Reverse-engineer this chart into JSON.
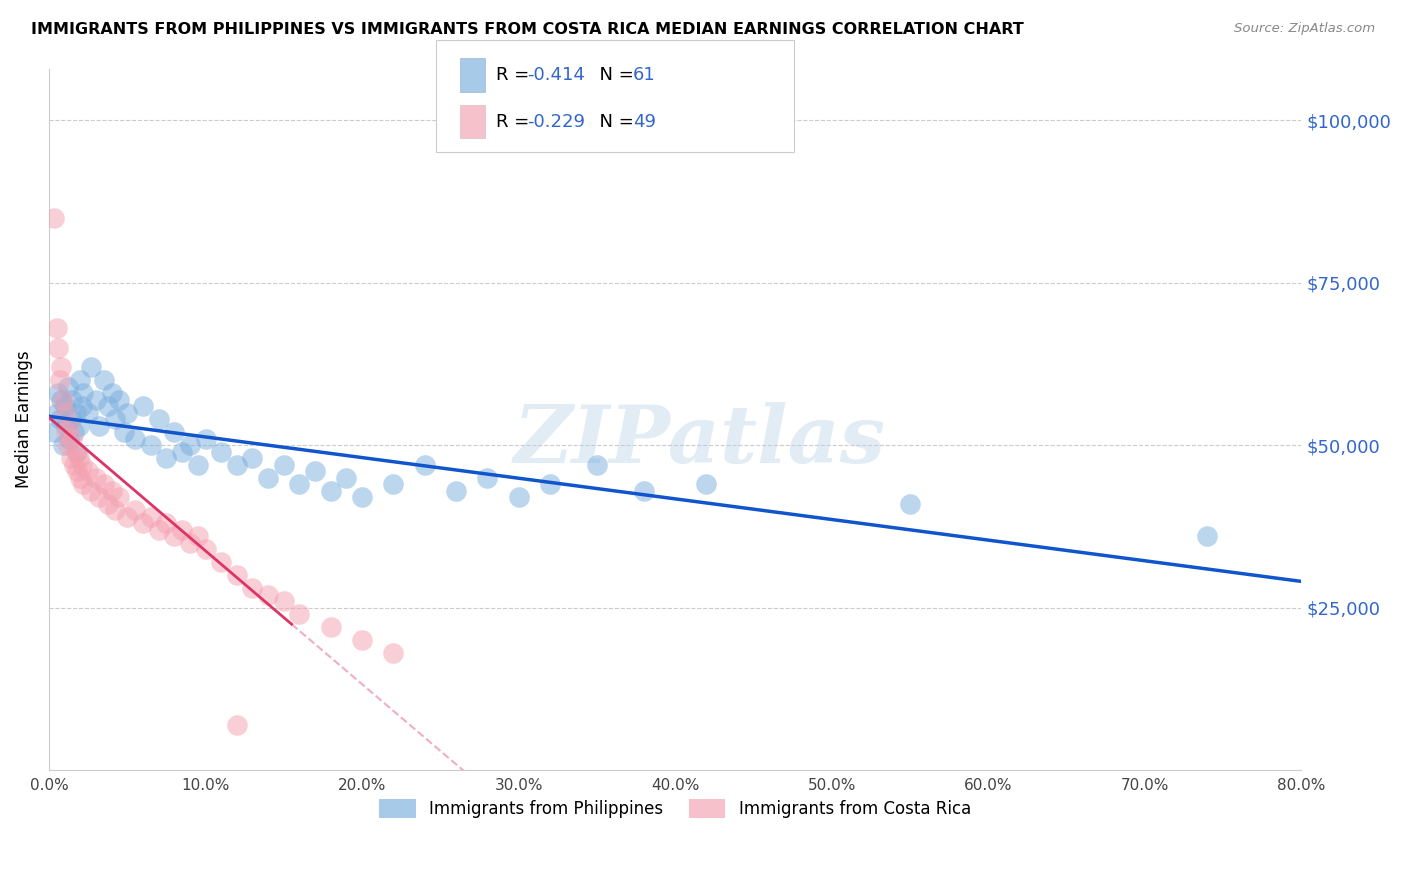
{
  "title": "IMMIGRANTS FROM PHILIPPINES VS IMMIGRANTS FROM COSTA RICA MEDIAN EARNINGS CORRELATION CHART",
  "source": "Source: ZipAtlas.com",
  "ylabel": "Median Earnings",
  "y_ticks": [
    0,
    25000,
    50000,
    75000,
    100000
  ],
  "y_tick_labels": [
    "",
    "$25,000",
    "$50,000",
    "$75,000",
    "$100,000"
  ],
  "xlim": [
    0.0,
    0.8
  ],
  "ylim": [
    0,
    108000
  ],
  "philippines_color": "#7aaede",
  "costa_rica_color": "#f4a0b0",
  "philippines_label": "Immigrants from Philippines",
  "costa_rica_label": "Immigrants from Costa Rica",
  "philippines_R": "-0.414",
  "philippines_N": "61",
  "costa_rica_R": "-0.229",
  "costa_rica_N": "49",
  "line_color_philippines": "#1155cc",
  "line_color_costa_rica": "#dd3366",
  "legend_text_color": "#3366cc",
  "watermark": "ZIPatlas",
  "philippines_x": [
    0.003,
    0.005,
    0.006,
    0.007,
    0.008,
    0.009,
    0.01,
    0.011,
    0.012,
    0.013,
    0.014,
    0.015,
    0.016,
    0.017,
    0.018,
    0.019,
    0.02,
    0.021,
    0.022,
    0.025,
    0.027,
    0.03,
    0.032,
    0.035,
    0.038,
    0.04,
    0.042,
    0.045,
    0.048,
    0.05,
    0.055,
    0.06,
    0.065,
    0.07,
    0.075,
    0.08,
    0.085,
    0.09,
    0.095,
    0.1,
    0.11,
    0.12,
    0.13,
    0.14,
    0.15,
    0.16,
    0.17,
    0.18,
    0.19,
    0.2,
    0.22,
    0.24,
    0.26,
    0.28,
    0.3,
    0.32,
    0.35,
    0.38,
    0.42,
    0.55,
    0.74
  ],
  "philippines_y": [
    52000,
    55000,
    58000,
    54000,
    57000,
    50000,
    56000,
    53000,
    59000,
    51000,
    54000,
    57000,
    52000,
    55000,
    49000,
    53000,
    60000,
    56000,
    58000,
    55000,
    62000,
    57000,
    53000,
    60000,
    56000,
    58000,
    54000,
    57000,
    52000,
    55000,
    51000,
    56000,
    50000,
    54000,
    48000,
    52000,
    49000,
    50000,
    47000,
    51000,
    49000,
    47000,
    48000,
    45000,
    47000,
    44000,
    46000,
    43000,
    45000,
    42000,
    44000,
    47000,
    43000,
    45000,
    42000,
    44000,
    47000,
    43000,
    44000,
    41000,
    36000
  ],
  "costa_rica_x": [
    0.003,
    0.005,
    0.006,
    0.007,
    0.008,
    0.009,
    0.01,
    0.011,
    0.012,
    0.013,
    0.014,
    0.015,
    0.016,
    0.017,
    0.018,
    0.019,
    0.02,
    0.021,
    0.022,
    0.025,
    0.027,
    0.03,
    0.032,
    0.035,
    0.038,
    0.04,
    0.042,
    0.045,
    0.05,
    0.055,
    0.06,
    0.065,
    0.07,
    0.075,
    0.08,
    0.085,
    0.09,
    0.095,
    0.1,
    0.11,
    0.12,
    0.13,
    0.14,
    0.15,
    0.16,
    0.18,
    0.2,
    0.22,
    0.12
  ],
  "costa_rica_y": [
    85000,
    68000,
    65000,
    60000,
    62000,
    57000,
    55000,
    52000,
    50000,
    53000,
    48000,
    51000,
    47000,
    49000,
    46000,
    48000,
    45000,
    47000,
    44000,
    46000,
    43000,
    45000,
    42000,
    44000,
    41000,
    43000,
    40000,
    42000,
    39000,
    40000,
    38000,
    39000,
    37000,
    38000,
    36000,
    37000,
    35000,
    36000,
    34000,
    32000,
    30000,
    28000,
    27000,
    26000,
    24000,
    22000,
    20000,
    18000,
    7000
  ]
}
